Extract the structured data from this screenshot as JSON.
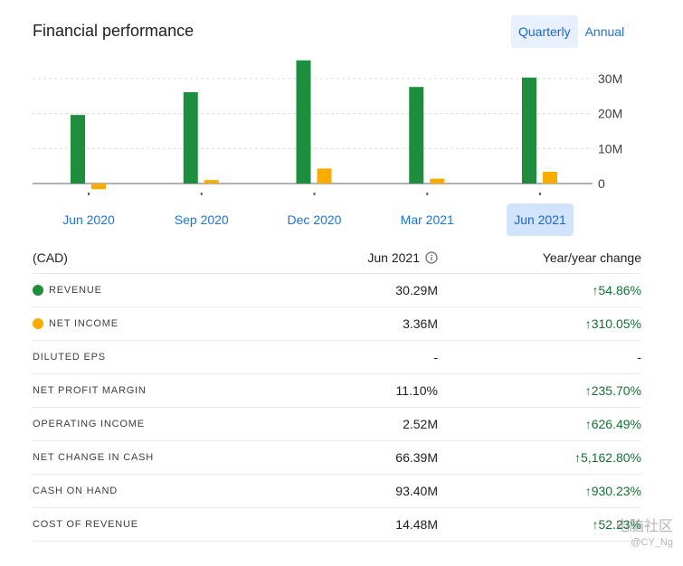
{
  "header": {
    "title": "Financial performance"
  },
  "period_toggle": {
    "quarterly": "Quarterly",
    "annual": "Annual",
    "selected": "Quarterly"
  },
  "chart_data": {
    "type": "bar",
    "categories": [
      "Jun 2020",
      "Sep 2020",
      "Dec 2020",
      "Mar 2021",
      "Jun 2021"
    ],
    "series": [
      {
        "name": "Revenue",
        "color": "#1e8e3e",
        "values": [
          19.6,
          26.1,
          35.2,
          27.6,
          30.29
        ]
      },
      {
        "name": "Net income",
        "color": "#f9ab00",
        "values": [
          -1.6,
          1.0,
          4.3,
          1.4,
          3.36
        ]
      }
    ],
    "y_ticks": [
      "0",
      "10M",
      "20M",
      "30M"
    ],
    "ylim": [
      -3,
      36
    ],
    "unit": "M",
    "selected_category": "Jun 2021"
  },
  "table": {
    "currency": "(CAD)",
    "period": "Jun 2021",
    "change_header": "Year/year change",
    "info_icon": "info-icon",
    "up_arrow": "↑",
    "rows": [
      {
        "label": "REVENUE",
        "dot": "#1e8e3e",
        "value": "30.29M",
        "change": "↑54.86%"
      },
      {
        "label": "NET INCOME",
        "dot": "#f9ab00",
        "value": "3.36M",
        "change": "↑310.05%"
      },
      {
        "label": "DILUTED EPS",
        "value": "-",
        "change": "-"
      },
      {
        "label": "NET PROFIT MARGIN",
        "value": "11.10%",
        "change": "↑235.70%"
      },
      {
        "label": "OPERATING INCOME",
        "value": "2.52M",
        "change": "↑626.49%"
      },
      {
        "label": "NET CHANGE IN CASH",
        "value": "66.39M",
        "change": "↑5,162.80%"
      },
      {
        "label": "CASH ON HAND",
        "value": "93.40M",
        "change": "↑930.23%"
      },
      {
        "label": "COST OF REVENUE",
        "value": "14.48M",
        "change": "↑52.23%"
      }
    ]
  },
  "watermark": {
    "text": "电脑社区",
    "handle": "@CY_Ng"
  },
  "colors": {
    "accent": "#1a73e8",
    "positive": "#137333",
    "revenue": "#1e8e3e",
    "net_income": "#f9ab00"
  }
}
